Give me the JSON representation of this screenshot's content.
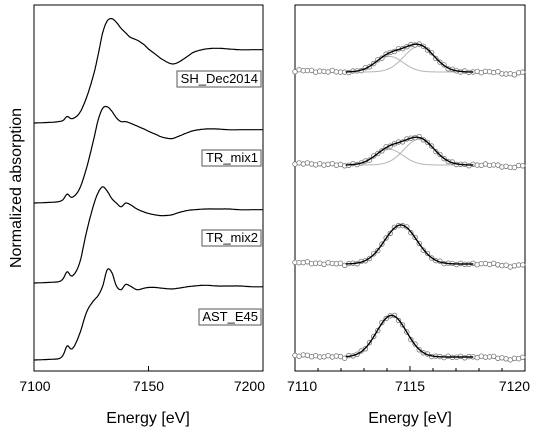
{
  "figure": {
    "ylabel": "Normalized absorption"
  },
  "chart_data": [
    {
      "type": "line",
      "panel": "left",
      "xlabel": "Energy [eV]",
      "xlim": [
        7100,
        7200
      ],
      "xticks": [
        7100,
        7150,
        7200
      ],
      "series": [
        {
          "name": "SH_Dec2014",
          "offset": 3,
          "pre_peak": 0.05,
          "x": [
            7100,
            7108,
            7111,
            7113,
            7117,
            7120,
            7123,
            7126,
            7128,
            7130,
            7132,
            7134,
            7136,
            7138,
            7140,
            7142,
            7145,
            7148,
            7150,
            7153,
            7156,
            7160,
            7163,
            7167,
            7170,
            7175,
            7180,
            7185,
            7190,
            7195,
            7200
          ],
          "y": [
            0.0,
            0.01,
            0.02,
            0.03,
            0.06,
            0.14,
            0.35,
            0.65,
            0.92,
            1.22,
            1.38,
            1.41,
            1.36,
            1.28,
            1.22,
            1.16,
            1.12,
            1.06,
            1.0,
            0.93,
            0.86,
            0.8,
            0.82,
            0.9,
            0.96,
            1.0,
            1.01,
            1.0,
            0.99,
            0.99,
            0.99
          ]
        },
        {
          "name": "TR_mix1",
          "offset": 2,
          "pre_peak": 0.07,
          "x": [
            7100,
            7108,
            7111,
            7113,
            7117,
            7120,
            7123,
            7126,
            7128,
            7130,
            7132,
            7134,
            7136,
            7138,
            7140,
            7142,
            7145,
            7148,
            7150,
            7153,
            7156,
            7160,
            7163,
            7167,
            7170,
            7175,
            7180,
            7185,
            7190,
            7195,
            7200
          ],
          "y": [
            0.0,
            0.01,
            0.02,
            0.04,
            0.08,
            0.2,
            0.48,
            0.85,
            1.12,
            1.28,
            1.3,
            1.24,
            1.15,
            1.1,
            1.1,
            1.08,
            1.04,
            1.0,
            0.97,
            0.93,
            0.89,
            0.87,
            0.9,
            0.95,
            0.98,
            1.0,
            1.0,
            0.99,
            0.99,
            0.99,
            0.99
          ]
        },
        {
          "name": "TR_mix2",
          "offset": 1,
          "pre_peak": 0.09,
          "x": [
            7100,
            7108,
            7111,
            7113,
            7117,
            7120,
            7123,
            7126,
            7128,
            7130,
            7132,
            7134,
            7136,
            7138,
            7140,
            7142,
            7145,
            7148,
            7150,
            7153,
            7156,
            7160,
            7163,
            7167,
            7170,
            7175,
            7180,
            7185,
            7190,
            7195,
            7200
          ],
          "y": [
            0.0,
            0.01,
            0.02,
            0.05,
            0.1,
            0.28,
            0.7,
            1.05,
            1.22,
            1.3,
            1.24,
            1.14,
            1.08,
            1.03,
            1.08,
            1.06,
            1.0,
            0.96,
            0.94,
            0.92,
            0.91,
            0.92,
            0.95,
            0.98,
            0.99,
            1.0,
            1.0,
            1.0,
            0.99,
            0.99,
            0.99
          ]
        },
        {
          "name": "AST_E45",
          "offset": 0,
          "pre_peak": 0.1,
          "x": [
            7100,
            7108,
            7111,
            7113,
            7117,
            7120,
            7123,
            7126,
            7128,
            7130,
            7132,
            7134,
            7136,
            7138,
            7140,
            7142,
            7145,
            7148,
            7150,
            7153,
            7156,
            7160,
            7163,
            7167,
            7170,
            7175,
            7180,
            7185,
            7190,
            7195,
            7200
          ],
          "y": [
            0.0,
            0.01,
            0.02,
            0.06,
            0.16,
            0.36,
            0.65,
            0.8,
            0.87,
            1.0,
            1.22,
            1.18,
            1.0,
            0.95,
            1.02,
            1.0,
            0.95,
            0.97,
            0.98,
            0.98,
            0.97,
            0.96,
            0.97,
            0.99,
            1.0,
            1.01,
            1.0,
            1.0,
            1.0,
            0.99,
            0.99
          ]
        }
      ]
    },
    {
      "type": "scatter",
      "panel": "right",
      "xlabel": "Energy [eV]",
      "xlim": [
        7110,
        7120
      ],
      "xticks": [
        7110,
        7115,
        7120
      ],
      "fit_range": [
        7112.2,
        7117.8
      ],
      "series": [
        {
          "name": "SH_Dec2014",
          "offset": 3,
          "components": [
            {
              "center": 7114.1,
              "amp": 0.6,
              "sigma": 0.6
            },
            {
              "center": 7115.4,
              "amp": 1.0,
              "sigma": 0.65
            }
          ]
        },
        {
          "name": "TR_mix1",
          "offset": 2,
          "components": [
            {
              "center": 7114.1,
              "amp": 0.6,
              "sigma": 0.6
            },
            {
              "center": 7115.4,
              "amp": 1.0,
              "sigma": 0.65
            }
          ]
        },
        {
          "name": "TR_mix2",
          "offset": 1,
          "components": [
            {
              "center": 7114.6,
              "amp": 1.5,
              "sigma": 0.7
            }
          ]
        },
        {
          "name": "AST_E45",
          "offset": 0,
          "components": [
            {
              "center": 7114.2,
              "amp": 1.6,
              "sigma": 0.65
            }
          ]
        }
      ]
    }
  ]
}
